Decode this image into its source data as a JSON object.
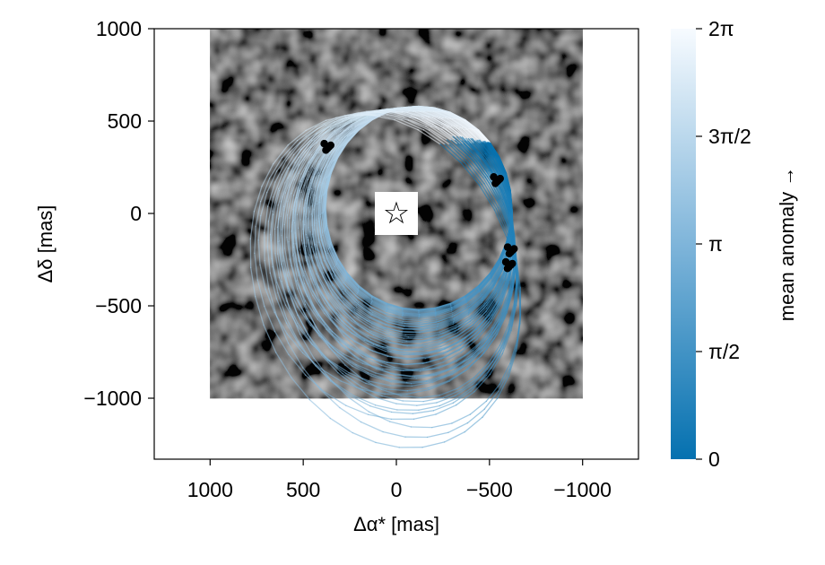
{
  "chart_data": {
    "type": "scatter",
    "title": "",
    "xlabel": "Δα* [mas]",
    "ylabel": "Δδ [mas]",
    "x_axis_reversed": true,
    "xlim": [
      1300,
      -1300
    ],
    "ylim": [
      -1330,
      1000
    ],
    "x_ticks": [
      1000,
      500,
      0,
      -500,
      -1000
    ],
    "x_tick_labels": [
      "1000",
      "500",
      "0",
      "−500",
      "−1000"
    ],
    "y_ticks": [
      1000,
      500,
      0,
      -500,
      -1000
    ],
    "y_tick_labels": [
      "1000",
      "500",
      "0",
      "−500",
      "−1000"
    ],
    "grid": false,
    "background_image": {
      "description": "grayscale speckle image",
      "extent_x": [
        1000,
        -1000
      ],
      "extent_y": [
        -1000,
        1000
      ]
    },
    "star_marker": {
      "x": 0,
      "y": 0,
      "symbol": "☆"
    },
    "observations": [
      {
        "x": 370,
        "y": 360
      },
      {
        "x": -540,
        "y": 180
      },
      {
        "x": -615,
        "y": -200
      },
      {
        "x": -605,
        "y": -280
      }
    ],
    "orbits": {
      "count": 60,
      "color_by": "mean anomaly",
      "representative": [
        {
          "x_min": -620,
          "x_max": 380,
          "y_min": -520,
          "y_max": 580
        },
        {
          "x_min": -640,
          "x_max": 820,
          "y_min": -1330,
          "y_max": 560
        }
      ]
    },
    "colorbar": {
      "label": "mean anomaly →",
      "range": [
        0,
        6.2832
      ],
      "ticks": [
        0,
        1.5708,
        3.1416,
        4.7124,
        6.2832
      ],
      "tick_labels": [
        "0",
        "π/2",
        "π",
        "3π/2",
        "2π"
      ],
      "color_low": "#0571b0",
      "color_high": "#f7fbff"
    }
  }
}
